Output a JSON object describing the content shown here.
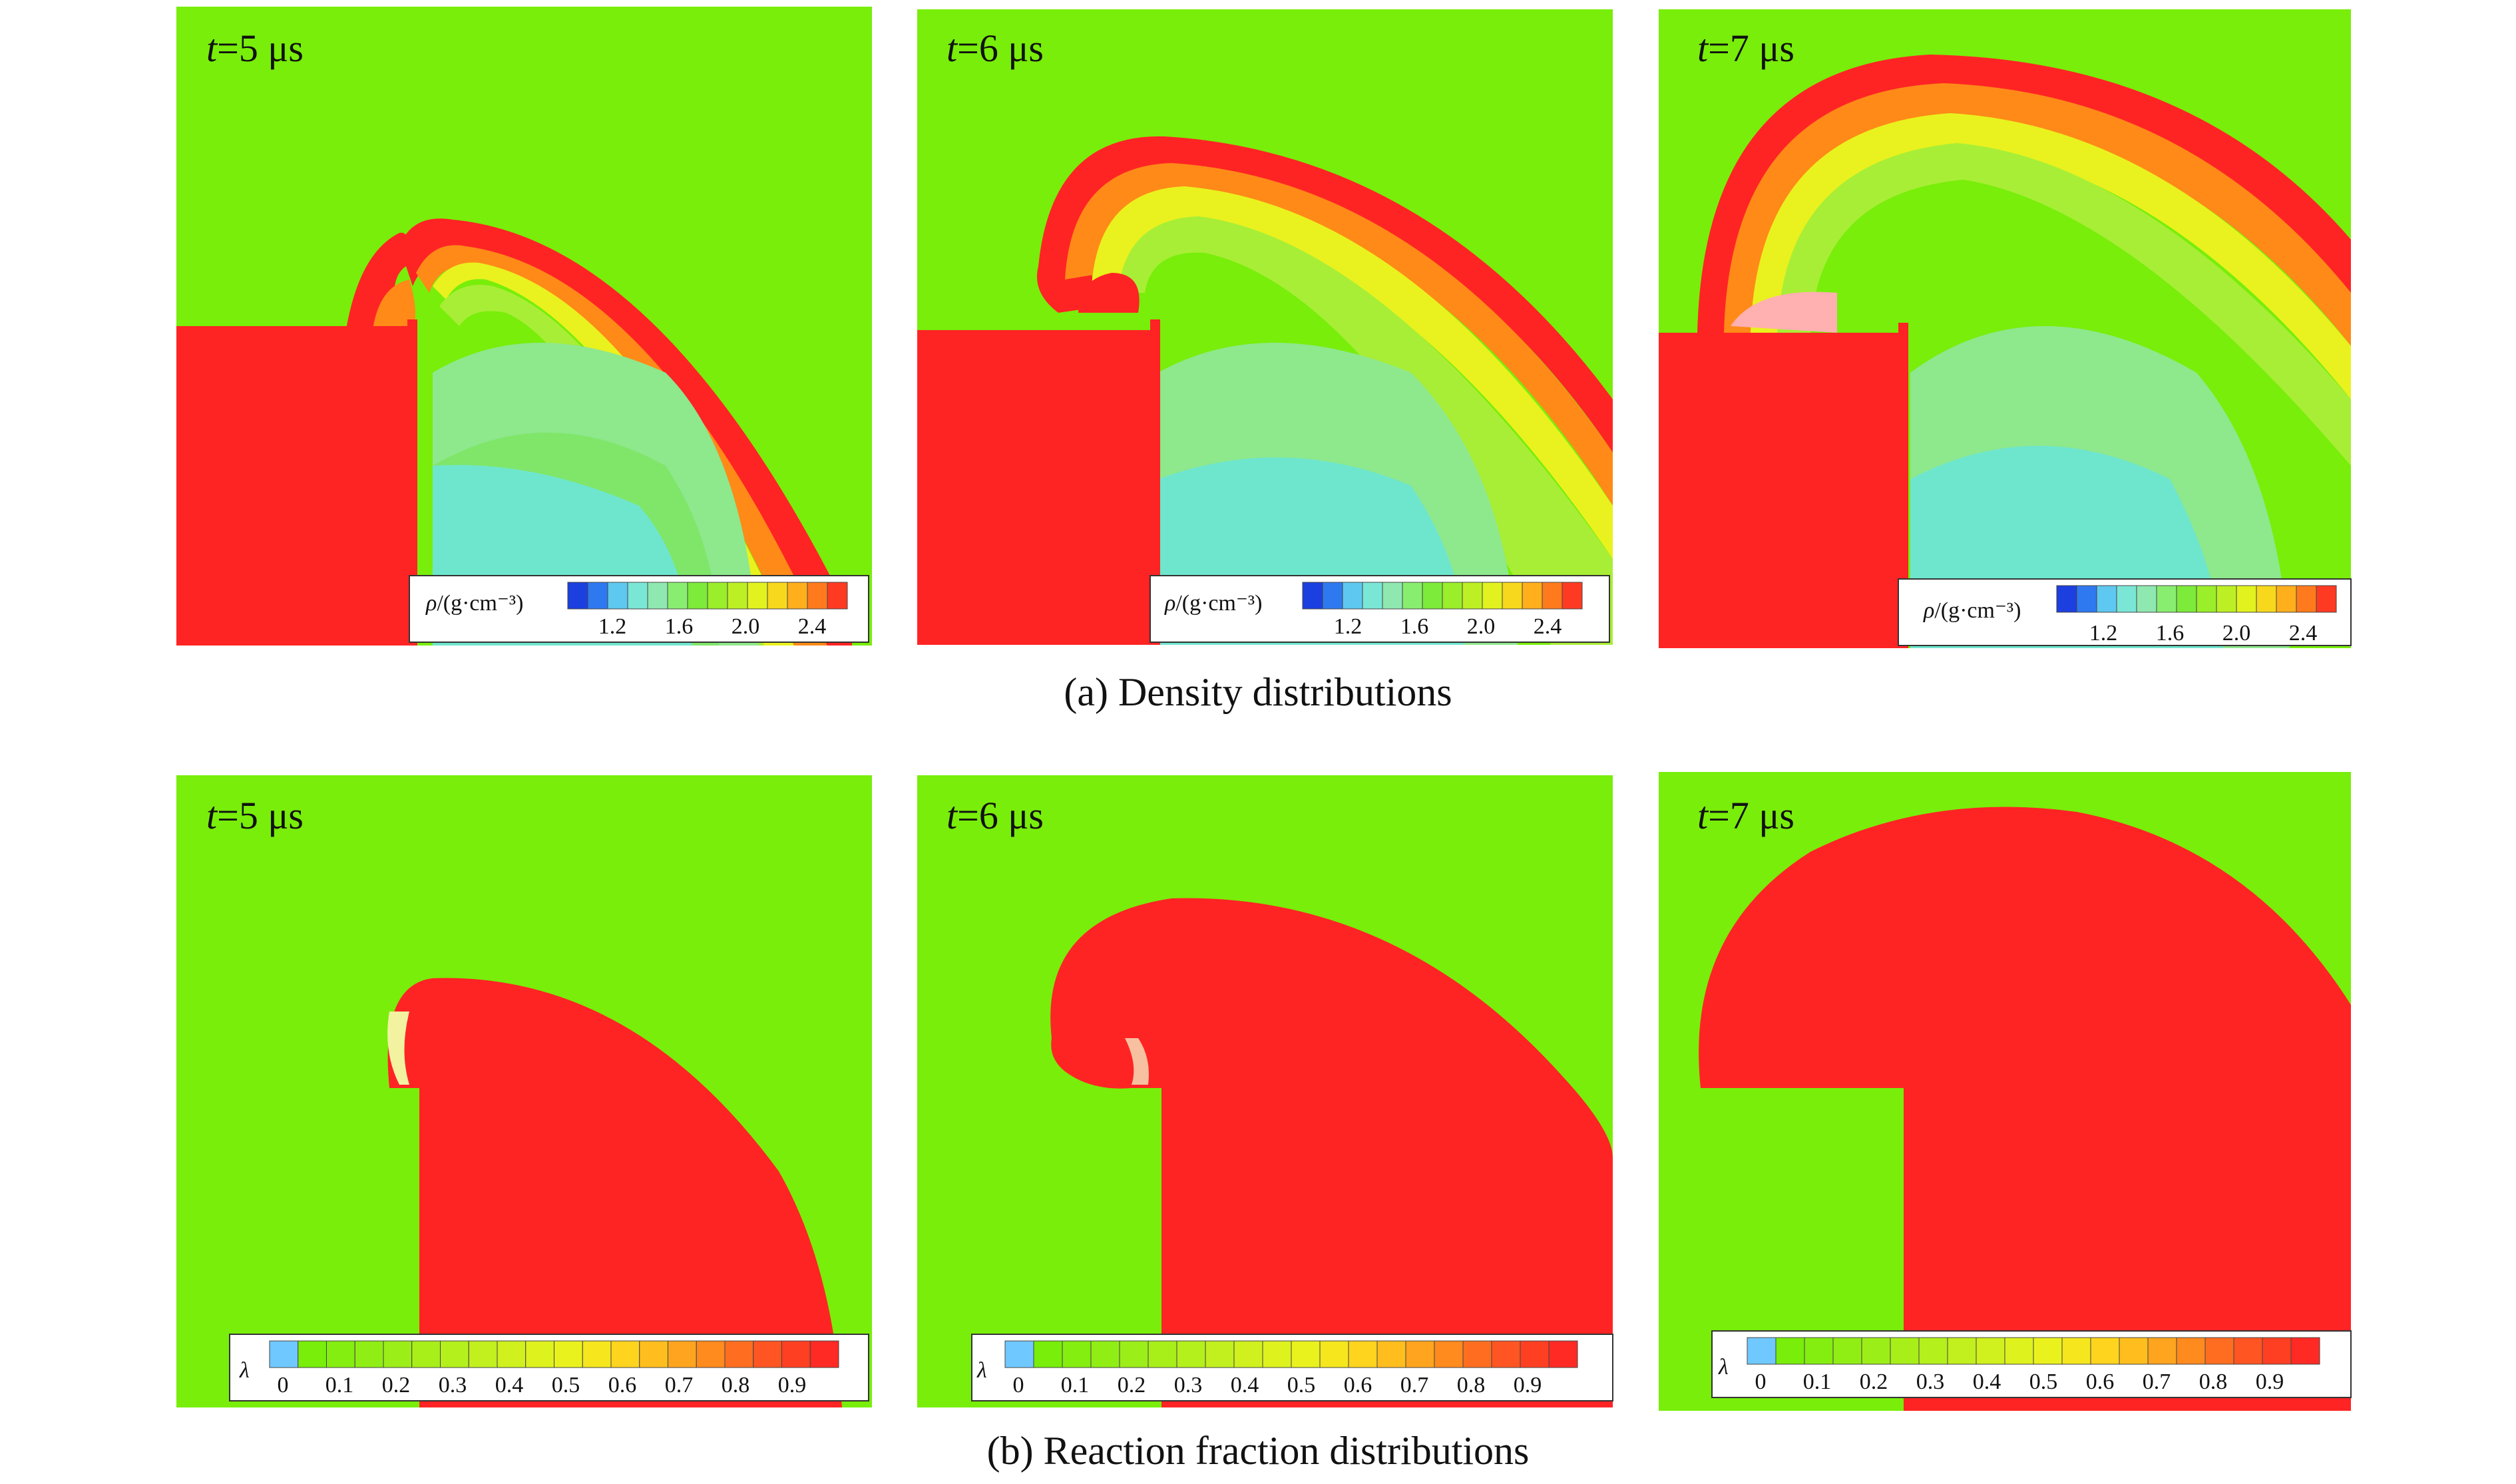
{
  "figure": {
    "row_a": {
      "caption": "(a) Density distributions",
      "panels": [
        {
          "time_var": "t",
          "time_value": "=5 μs"
        },
        {
          "time_var": "t",
          "time_value": "=6 μs"
        },
        {
          "time_var": "t",
          "time_value": "=7 μs"
        }
      ],
      "colorbar": {
        "var": "ρ",
        "unit": "/(g·cm⁻³)",
        "ticks": [
          "1.2",
          "1.6",
          "2.0",
          "2.4"
        ],
        "steps": 14
      }
    },
    "row_b": {
      "caption": "(b) Reaction fraction distributions",
      "panels": [
        {
          "time_var": "t",
          "time_value": "=5 μs"
        },
        {
          "time_var": "t",
          "time_value": "=6 μs"
        },
        {
          "time_var": "t",
          "time_value": "=7 μs"
        }
      ],
      "colorbar": {
        "var": "λ",
        "ticks": [
          "0",
          "0.1",
          "0.2",
          "0.3",
          "0.4",
          "0.5",
          "0.6",
          "0.7",
          "0.8",
          "0.9"
        ],
        "steps": 20
      }
    }
  },
  "colors": {
    "ambient_green": "#78EE0A",
    "red": "#FF2424",
    "orange": "#FF8A18",
    "yellow": "#E9F21E",
    "light_green": "#A8EE36",
    "pale_green": "#8EE88C",
    "cyan": "#6EE6CE",
    "blue": "#1C4FE8"
  }
}
